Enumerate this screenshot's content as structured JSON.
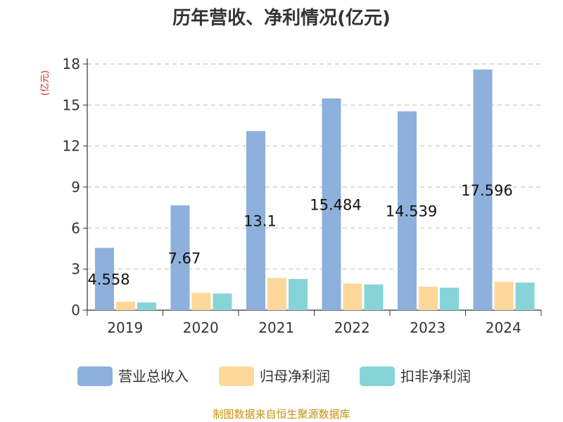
{
  "chart_data": {
    "type": "bar",
    "title": "历年营收、净利情况(亿元)",
    "ylabel": "(亿元)",
    "categories": [
      "2019",
      "2020",
      "2021",
      "2022",
      "2023",
      "2024"
    ],
    "ylim": [
      0,
      18
    ],
    "yticks": [
      0,
      3,
      6,
      9,
      12,
      15,
      18
    ],
    "grid": true,
    "legend_position": "bottom",
    "series": [
      {
        "name": "营业总收入",
        "color": "#8eb0dc",
        "values": [
          4.558,
          7.67,
          13.1,
          15.484,
          14.539,
          17.596
        ],
        "labels": [
          "4.558",
          "7.67",
          "13.1",
          "15.484",
          "14.539",
          "17.596"
        ]
      },
      {
        "name": "归母净利润",
        "color": "#fdd89a",
        "values": [
          0.62,
          1.27,
          2.35,
          1.95,
          1.72,
          2.08
        ]
      },
      {
        "name": "扣非净利润",
        "color": "#86d4d8",
        "values": [
          0.56,
          1.22,
          2.28,
          1.88,
          1.65,
          2.02
        ]
      }
    ]
  },
  "footer": {
    "source": "制图数据来自恒生聚源数据库"
  }
}
